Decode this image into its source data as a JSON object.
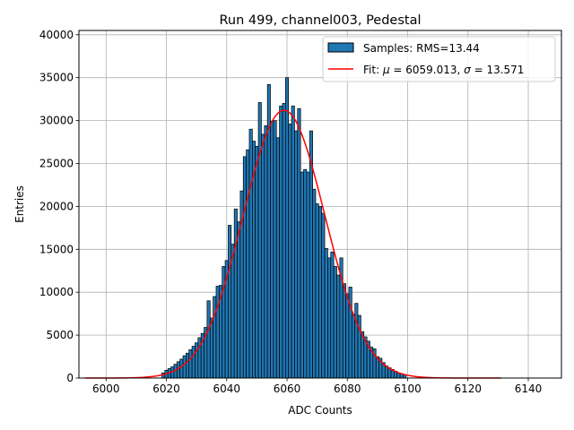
{
  "chart_data": {
    "type": "bar",
    "title": "Run 499, channel003, Pedestal",
    "xlabel": "ADC Counts",
    "ylabel": "Entries",
    "xlim": [
      5991,
      6151
    ],
    "ylim": [
      0,
      40500
    ],
    "xticks": [
      6000,
      6020,
      6040,
      6060,
      6080,
      6100,
      6120,
      6140
    ],
    "yticks": [
      0,
      5000,
      10000,
      15000,
      20000,
      25000,
      30000,
      35000,
      40000
    ],
    "grid": true,
    "legend_position": "top-right",
    "bin_width": 1,
    "histogram": {
      "name": "Samples: RMS=13.44",
      "color": "#1f77b4",
      "x": [
        6019,
        6020,
        6021,
        6022,
        6023,
        6024,
        6025,
        6026,
        6027,
        6028,
        6029,
        6030,
        6031,
        6032,
        6033,
        6034,
        6035,
        6036,
        6037,
        6038,
        6039,
        6040,
        6041,
        6042,
        6043,
        6044,
        6045,
        6046,
        6047,
        6048,
        6049,
        6050,
        6051,
        6052,
        6053,
        6054,
        6055,
        6056,
        6057,
        6058,
        6059,
        6060,
        6061,
        6062,
        6063,
        6064,
        6065,
        6066,
        6067,
        6068,
        6069,
        6070,
        6071,
        6072,
        6073,
        6074,
        6075,
        6076,
        6077,
        6078,
        6079,
        6080,
        6081,
        6082,
        6083,
        6084,
        6085,
        6086,
        6087,
        6088,
        6089,
        6090,
        6091,
        6092,
        6093,
        6094,
        6095,
        6096,
        6097,
        6098,
        6099
      ],
      "values": [
        600,
        900,
        1100,
        1300,
        1600,
        1900,
        2200,
        2600,
        2900,
        3300,
        3700,
        4100,
        4700,
        5200,
        5900,
        9000,
        7000,
        9500,
        10700,
        10800,
        13000,
        13700,
        17800,
        15600,
        19700,
        18200,
        21800,
        25800,
        26600,
        29000,
        27600,
        27000,
        32100,
        28400,
        29400,
        34200,
        29900,
        30000,
        28000,
        31700,
        32000,
        35000,
        29600,
        31700,
        28800,
        31400,
        24000,
        24300,
        24000,
        28800,
        22000,
        20300,
        20000,
        19200,
        15100,
        14000,
        14700,
        13000,
        12000,
        14000,
        11000,
        9800,
        10600,
        7400,
        8700,
        7300,
        5400,
        4800,
        4300,
        3600,
        3400,
        2500,
        2300,
        1800,
        1400,
        1200,
        1000,
        800,
        600,
        500,
        400
      ]
    },
    "fit": {
      "name": "Fit: μ = 6059.013, σ = 13.571",
      "label_prefix": "Fit: ",
      "mu_symbol": "μ",
      "mu_value": " = 6059.013, ",
      "sigma_symbol": "σ",
      "sigma_value": " = 13.571",
      "color": "#ff0000",
      "mu": 6059.013,
      "sigma": 13.571,
      "amplitude": 31200,
      "x_range": [
        5993,
        6131
      ]
    }
  }
}
